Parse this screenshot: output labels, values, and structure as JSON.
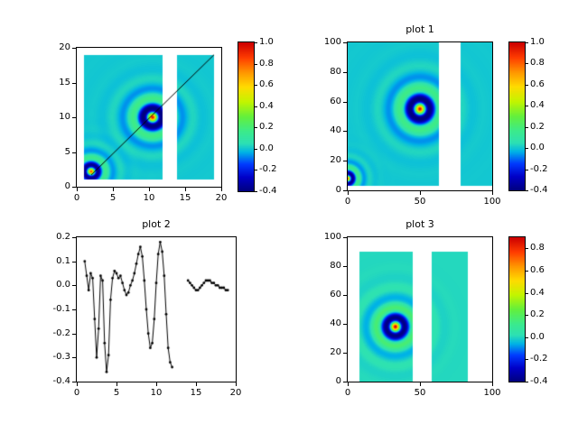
{
  "figure": {
    "background": "#ffffff"
  },
  "colormap": {
    "name": "jet",
    "stops": [
      [
        0.0,
        0,
        0,
        130
      ],
      [
        0.09,
        0,
        0,
        200
      ],
      [
        0.18,
        0,
        60,
        255
      ],
      [
        0.26,
        0,
        180,
        230
      ],
      [
        0.32,
        45,
        225,
        180
      ],
      [
        0.4,
        60,
        235,
        140
      ],
      [
        0.5,
        100,
        240,
        60
      ],
      [
        0.6,
        195,
        245,
        0
      ],
      [
        0.7,
        255,
        220,
        0
      ],
      [
        0.8,
        255,
        150,
        0
      ],
      [
        0.9,
        255,
        60,
        0
      ],
      [
        1.0,
        205,
        0,
        0
      ]
    ]
  },
  "chart_data": [
    {
      "id": "heatmap-main",
      "type": "heatmap",
      "title": "",
      "xlim": [
        0,
        20
      ],
      "ylim": [
        0,
        20
      ],
      "xtick_vals": [
        0,
        5,
        10,
        15,
        20
      ],
      "xtick_labels": [
        "0",
        "5",
        "10",
        "15",
        "20"
      ],
      "ytick_vals": [
        0,
        5,
        10,
        15,
        20
      ],
      "ytick_labels": [
        "0",
        "5",
        "10",
        "15",
        "20"
      ],
      "extent": {
        "x1": 1,
        "x2": 19,
        "y1": 1,
        "y2": 19
      },
      "gap_x": [
        11.9,
        13.9
      ],
      "sources": [
        {
          "x": 10.5,
          "y": 10,
          "amp": 1.0,
          "k": 2.2
        },
        {
          "x": 2.0,
          "y": 2.2,
          "amp": 0.9,
          "k": 3.0
        }
      ],
      "vmin": -0.4,
      "vmax": 1.0,
      "line_overlay": [
        [
          2,
          1.7
        ],
        [
          19,
          19
        ]
      ],
      "colorbar": {
        "tick_vals": [
          1.0,
          0.8,
          0.6,
          0.4,
          0.2,
          0.0,
          -0.2,
          -0.4
        ],
        "tick_labels": [
          "1.0",
          "0.8",
          "0.6",
          "0.4",
          "0.2",
          "0.0",
          "-0.2",
          "-0.4"
        ]
      }
    },
    {
      "id": "plot1",
      "type": "heatmap",
      "title": "plot 1",
      "xlim": [
        0,
        100
      ],
      "ylim": [
        0,
        100
      ],
      "xtick_vals": [
        0,
        50,
        100
      ],
      "xtick_labels": [
        "0",
        "50",
        "100"
      ],
      "ytick_vals": [
        0,
        20,
        40,
        60,
        80,
        100
      ],
      "ytick_labels": [
        "0",
        "20",
        "40",
        "60",
        "80",
        "100"
      ],
      "extent": {
        "x1": 0,
        "x2": 100,
        "y1": 3,
        "y2": 100
      },
      "gap_x": [
        63,
        78
      ],
      "sources": [
        {
          "x": 50,
          "y": 55,
          "amp": 1.0,
          "k": 0.42
        },
        {
          "x": 0,
          "y": 8,
          "amp": 0.9,
          "k": 0.8
        }
      ],
      "vmin": -0.4,
      "vmax": 1.0,
      "colorbar": {
        "tick_vals": [
          1.0,
          0.8,
          0.6,
          0.4,
          0.2,
          0.0,
          -0.2,
          -0.4
        ],
        "tick_labels": [
          "1.0",
          "0.8",
          "0.6",
          "0.4",
          "0.2",
          "0.0",
          "-0.2",
          "-0.4"
        ]
      }
    },
    {
      "id": "plot2",
      "type": "line",
      "title": "plot 2",
      "xlim": [
        0,
        20
      ],
      "ylim": [
        -0.4,
        0.2
      ],
      "xtick_vals": [
        0,
        5,
        10,
        15,
        20
      ],
      "xtick_labels": [
        "0",
        "5",
        "10",
        "15",
        "20"
      ],
      "ytick_vals": [
        0.2,
        0.1,
        0.0,
        -0.1,
        -0.2,
        -0.3,
        -0.4
      ],
      "ytick_labels": [
        "0.2",
        "0.1",
        "0.0",
        "-0.1",
        "-0.2",
        "-0.3",
        "-0.4"
      ],
      "line_color": "#000000",
      "marker": "dot",
      "segments": [
        {
          "x": [
            1.0,
            1.25,
            1.5,
            1.75,
            2.0,
            2.25,
            2.5,
            2.75,
            3.0,
            3.25,
            3.5,
            3.75,
            4.0,
            4.25,
            4.5,
            4.75,
            5.0,
            5.25,
            5.5,
            5.75,
            6.0,
            6.25,
            6.5,
            6.75,
            7.0,
            7.25,
            7.5,
            7.75,
            8.0,
            8.25,
            8.5,
            8.75,
            9.0,
            9.25,
            9.5,
            9.75,
            10.0,
            10.25,
            10.5,
            10.75,
            11.0,
            11.25,
            11.5,
            11.75,
            12.0
          ],
          "y": [
            0.1,
            0.04,
            -0.02,
            0.05,
            0.03,
            -0.14,
            -0.3,
            -0.18,
            0.04,
            0.02,
            -0.24,
            -0.36,
            -0.29,
            -0.06,
            0.03,
            0.06,
            0.05,
            0.03,
            0.04,
            0.01,
            -0.02,
            -0.04,
            -0.03,
            0.0,
            0.02,
            0.05,
            0.09,
            0.13,
            0.16,
            0.12,
            0.02,
            -0.1,
            -0.2,
            -0.26,
            -0.24,
            -0.14,
            0.01,
            0.13,
            0.18,
            0.14,
            0.04,
            -0.12,
            -0.26,
            -0.32,
            -0.34
          ]
        },
        {
          "x": [
            14.0,
            14.25,
            14.5,
            14.75,
            15.0,
            15.25,
            15.5,
            15.75,
            16.0,
            16.25,
            16.5,
            16.75,
            17.0,
            17.25,
            17.5,
            17.75,
            18.0,
            18.25,
            18.5,
            18.75,
            19.0
          ],
          "y": [
            0.02,
            0.01,
            0.0,
            -0.01,
            -0.02,
            -0.02,
            -0.01,
            0.0,
            0.01,
            0.02,
            0.02,
            0.02,
            0.01,
            0.01,
            0.0,
            0.0,
            -0.01,
            -0.01,
            -0.01,
            -0.02,
            -0.02
          ]
        }
      ]
    },
    {
      "id": "plot3",
      "type": "heatmap",
      "title": "plot 3",
      "xlim": [
        0,
        100
      ],
      "ylim": [
        0,
        100
      ],
      "xtick_vals": [
        0,
        50,
        100
      ],
      "xtick_labels": [
        "0",
        "50",
        "100"
      ],
      "ytick_vals": [
        0,
        20,
        40,
        60,
        80,
        100
      ],
      "ytick_labels": [
        "0",
        "20",
        "40",
        "60",
        "80",
        "100"
      ],
      "extent": {
        "x1": 8,
        "x2": 83,
        "y1": 0,
        "y2": 90
      },
      "gap_x": [
        45,
        58
      ],
      "sources": [
        {
          "x": 33,
          "y": 38,
          "amp": 0.95,
          "k": 0.45
        }
      ],
      "vmin": -0.4,
      "vmax": 0.9,
      "colorbar": {
        "tick_vals": [
          0.8,
          0.6,
          0.4,
          0.2,
          0.0,
          -0.2,
          -0.4
        ],
        "tick_labels": [
          "0.8",
          "0.6",
          "0.4",
          "0.2",
          "0.0",
          "-0.2",
          "-0.4"
        ]
      }
    }
  ]
}
